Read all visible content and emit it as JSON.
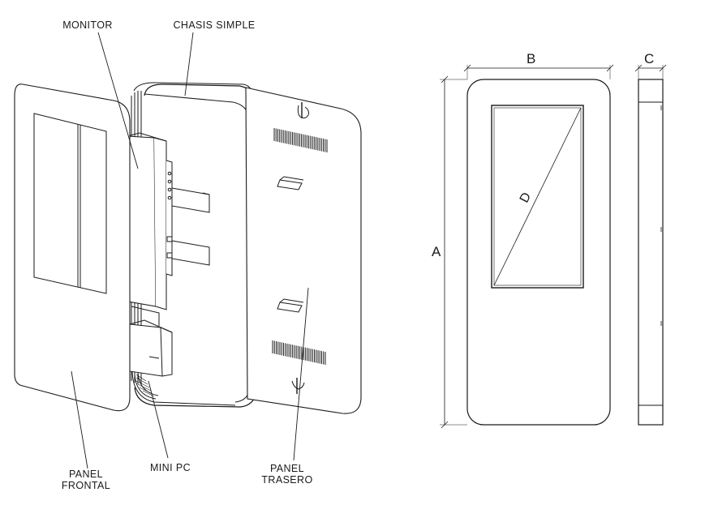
{
  "callouts": {
    "monitor": "MONITOR",
    "chasis": "CHASIS SIMPLE",
    "mini_pc": "MINI PC",
    "panel_frontal": [
      "PANEL",
      "FRONTAL"
    ],
    "panel_trasero": [
      "PANEL",
      "TRASERO"
    ]
  },
  "dimensions": {
    "height": "A",
    "width": "B",
    "depth": "C",
    "diagonal": "D"
  },
  "colors": {
    "line": "#1a1a1a",
    "background": "#ffffff"
  }
}
